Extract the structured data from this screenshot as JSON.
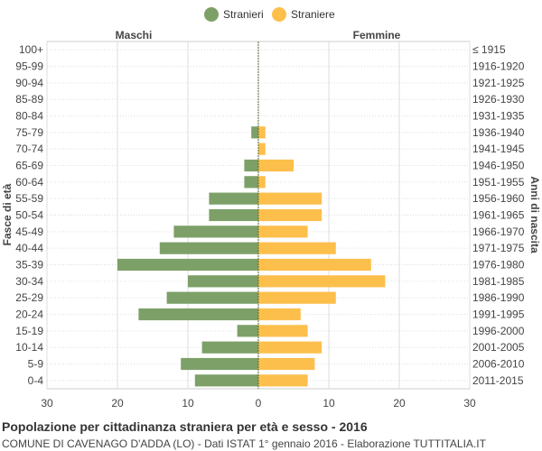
{
  "chart_data": {
    "type": "bar",
    "orientation": "horizontal-population-pyramid",
    "title": "Popolazione per cittadinanza straniera per età e sesso - 2016",
    "subtitle": "COMUNE DI CAVENAGO D'ADDA (LO) - Dati ISTAT 1° gennaio 2016 - Elaborazione TUTTITALIA.IT",
    "ylabel_left": "Fasce di età",
    "ylabel_right": "Anni di nascita",
    "left_header": "Maschi",
    "right_header": "Femmine",
    "xlim": [
      -30,
      30
    ],
    "x_ticks": [
      "30",
      "20",
      "10",
      "0",
      "10",
      "20",
      "30"
    ],
    "grid": true,
    "legend_position": "top-center",
    "categories": [
      "100+",
      "95-99",
      "90-94",
      "85-89",
      "80-84",
      "75-79",
      "70-74",
      "65-69",
      "60-64",
      "55-59",
      "50-54",
      "45-49",
      "40-44",
      "35-39",
      "30-34",
      "25-29",
      "20-24",
      "15-19",
      "10-14",
      "5-9",
      "0-4"
    ],
    "birth_years": [
      "≤ 1915",
      "1916-1920",
      "1921-1925",
      "1926-1930",
      "1931-1935",
      "1936-1940",
      "1941-1945",
      "1946-1950",
      "1951-1955",
      "1956-1960",
      "1961-1965",
      "1966-1970",
      "1971-1975",
      "1976-1980",
      "1981-1985",
      "1986-1990",
      "1991-1995",
      "1996-2000",
      "2001-2005",
      "2006-2010",
      "2011-2015"
    ],
    "series": [
      {
        "name": "Stranieri",
        "color": "#7da068",
        "values": [
          0,
          0,
          0,
          0,
          0,
          1,
          0,
          2,
          2,
          7,
          7,
          12,
          14,
          20,
          10,
          13,
          17,
          3,
          8,
          11,
          9
        ]
      },
      {
        "name": "Straniere",
        "color": "#fdbf4c",
        "values": [
          0,
          0,
          0,
          0,
          0,
          1,
          1,
          5,
          1,
          9,
          9,
          7,
          11,
          16,
          18,
          11,
          6,
          7,
          9,
          8,
          7
        ]
      }
    ]
  }
}
